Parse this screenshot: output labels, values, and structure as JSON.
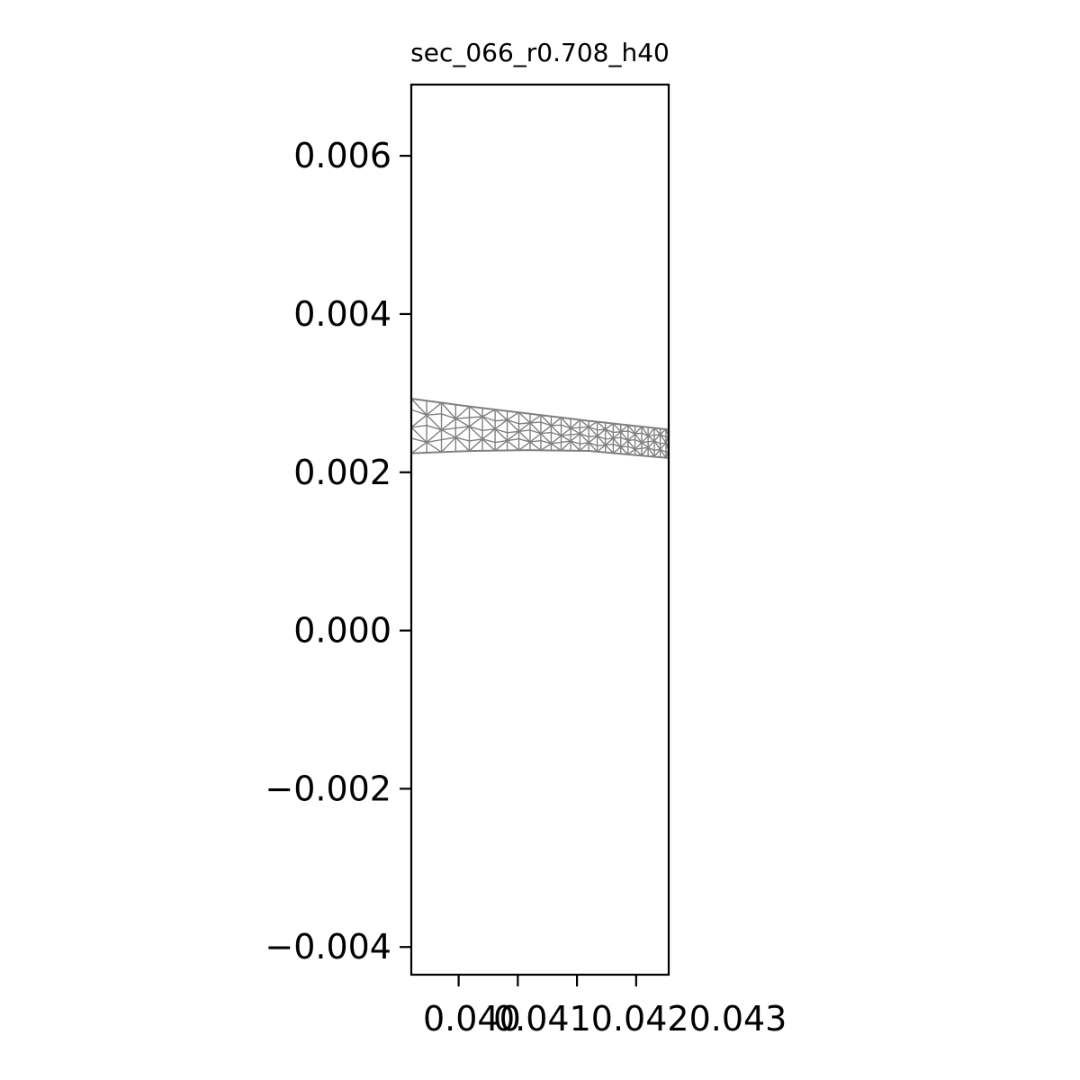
{
  "chart_data": {
    "type": "mesh",
    "title": "sec_066_r0.708_h40",
    "xlabel": "",
    "ylabel": "",
    "xlim": [
      0.0392,
      0.04355
    ],
    "ylim": [
      -0.00435,
      0.0069
    ],
    "x_ticks": [
      {
        "value": 0.04,
        "label": "0.040"
      },
      {
        "value": 0.041,
        "label": "0.041"
      },
      {
        "value": 0.042,
        "label": "0.042"
      },
      {
        "value": 0.043,
        "label": "0.043"
      }
    ],
    "x_tick_label_text": "0.0410.0420.043",
    "y_ticks": [
      {
        "value": 0.006,
        "label": "0.006"
      },
      {
        "value": 0.004,
        "label": "0.004"
      },
      {
        "value": 0.002,
        "label": "0.002"
      },
      {
        "value": 0.0,
        "label": "0.000"
      },
      {
        "value": -0.002,
        "label": "−0.002"
      },
      {
        "value": -0.004,
        "label": "−0.004"
      }
    ],
    "grid": false,
    "mesh_color": "#808080",
    "mesh_region": {
      "x_start": 0.0392,
      "x_end": 0.04355,
      "upper_edge": [
        [
          0.0392,
          0.00293
        ],
        [
          0.0402,
          0.00283
        ],
        [
          0.0412,
          0.00274
        ],
        [
          0.0422,
          0.00265
        ],
        [
          0.04355,
          0.00254
        ]
      ],
      "lower_edge": [
        [
          0.0392,
          0.00224
        ],
        [
          0.0402,
          0.00227
        ],
        [
          0.0412,
          0.00228
        ],
        [
          0.0422,
          0.00227
        ],
        [
          0.04355,
          0.00218
        ]
      ]
    }
  }
}
